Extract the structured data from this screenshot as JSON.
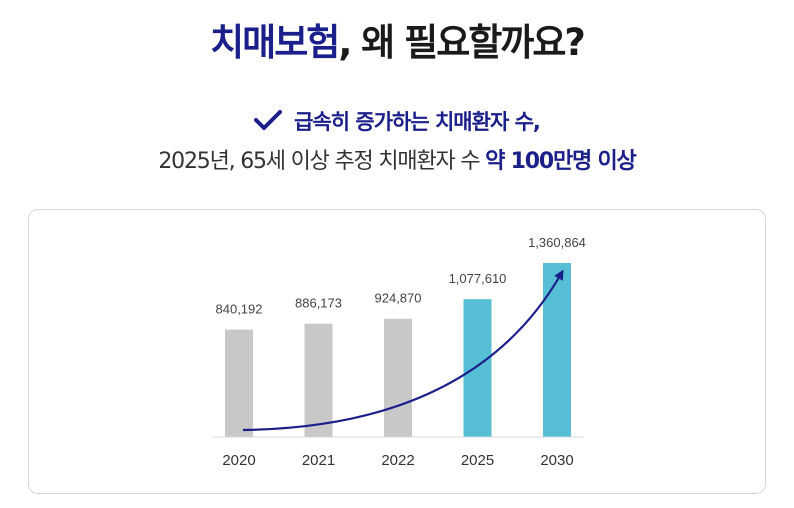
{
  "heading": {
    "accent": "치매보험",
    "rest": ", 왜 필요할까요?"
  },
  "subheading": {
    "line1": "급속히 증가하는 치매환자 수,",
    "line2_plain": "2025년, 65세 이상 추정 치매환자 수 ",
    "line2_strong": "약 100만명 이상"
  },
  "icons": {
    "check": "check-icon",
    "arrow": "trend-arrow"
  },
  "colors": {
    "accent": "#1b1f8a",
    "bar_past": "#c8c8c8",
    "bar_future": "#56bfd6"
  },
  "chart_data": {
    "type": "bar",
    "categories": [
      "2020",
      "2021",
      "2022",
      "2025",
      "2030"
    ],
    "values": [
      840192,
      886173,
      924870,
      1077610,
      1360864
    ],
    "data_labels": [
      "840,192",
      "886,173",
      "924,870",
      "1,077,610",
      "1,360,864"
    ],
    "bar_colors": [
      "#c8c8c8",
      "#c8c8c8",
      "#c8c8c8",
      "#56bfd6",
      "#56bfd6"
    ],
    "title": "",
    "xlabel": "",
    "ylabel": "",
    "grid": false,
    "legend": "none",
    "annotation": "trend arrow rising from 2020 to 2030"
  }
}
